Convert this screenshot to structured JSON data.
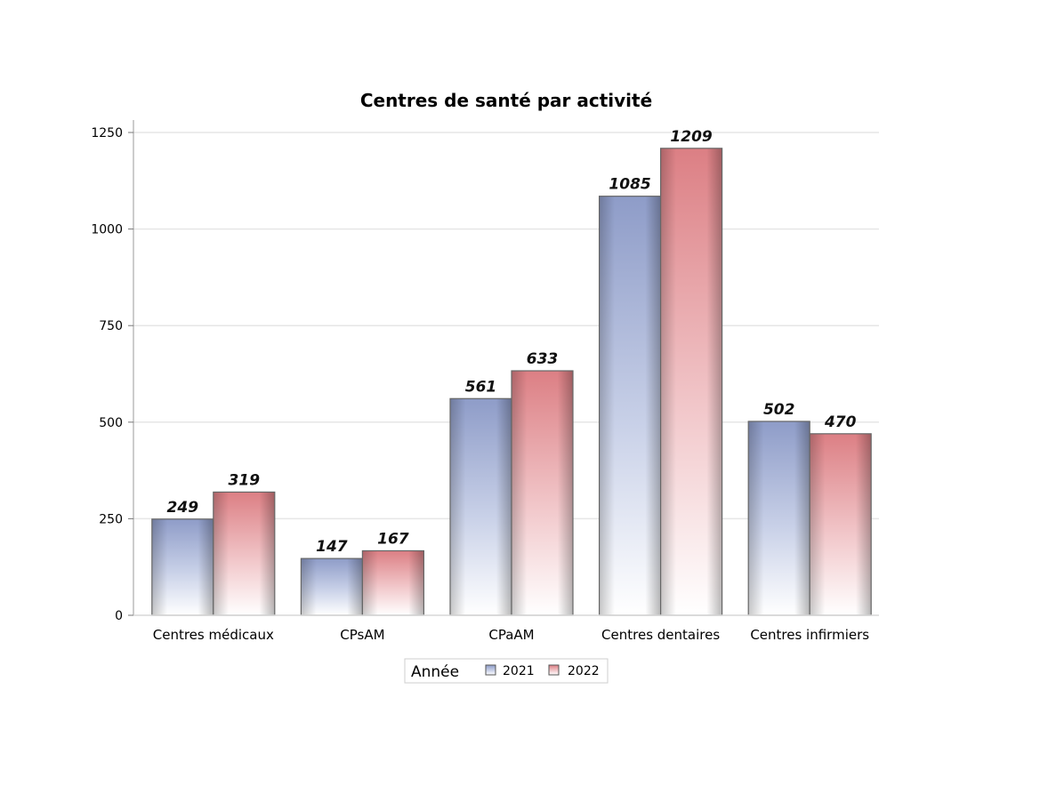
{
  "chart_data": {
    "type": "bar",
    "title": "Centres de santé par activité",
    "categories": [
      "Centres médicaux",
      "CPsAM",
      "CPaAM",
      "Centres dentaires",
      "Centres infirmiers"
    ],
    "series": [
      {
        "name": "2021",
        "values": [
          249,
          147,
          561,
          1085,
          502
        ],
        "color": "#8e9cc8"
      },
      {
        "name": "2022",
        "values": [
          319,
          167,
          633,
          1209,
          470
        ],
        "color": "#dc7f84"
      }
    ],
    "yticks": [
      "0",
      "250",
      "500",
      "750",
      "1000",
      "1250"
    ],
    "ylim": [
      0,
      1280
    ],
    "grid": true,
    "legend": {
      "title": "Année",
      "position": "bottom-center"
    }
  }
}
